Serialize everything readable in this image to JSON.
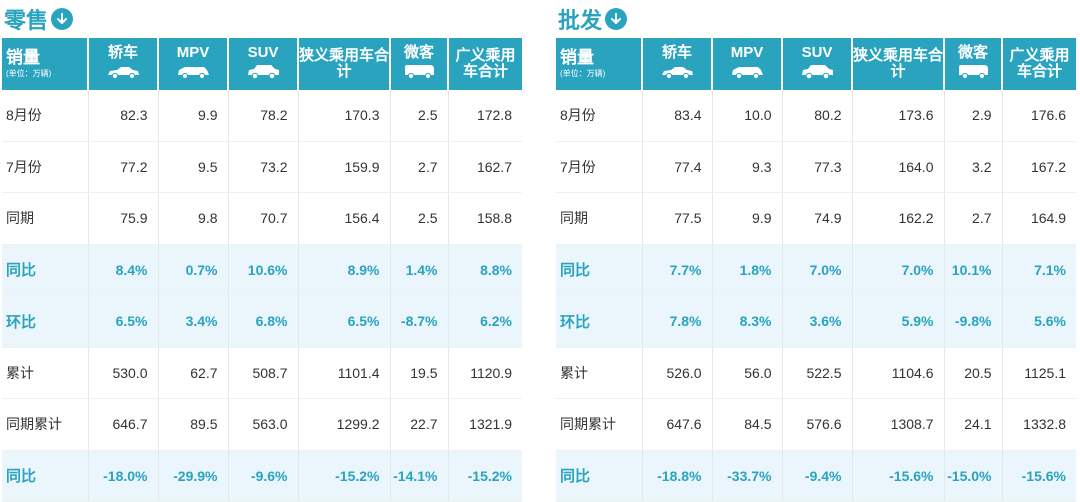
{
  "colors": {
    "accent": "#2aa3bf",
    "highlight_row_bg": "#eaf6fb"
  },
  "header": {
    "corner_main": "销量",
    "corner_sub": "(单位：万辆)",
    "columns": [
      {
        "label": "轿车",
        "icon": "sedan-car-icon"
      },
      {
        "label": "MPV",
        "icon": "mpv-car-icon"
      },
      {
        "label": "SUV",
        "icon": "suv-car-icon"
      },
      {
        "label": "狭义乘用车合计"
      },
      {
        "label": "微客",
        "icon": "minivan-car-icon"
      },
      {
        "label": "广义乘用车合计"
      }
    ]
  },
  "retail": {
    "title": "零售",
    "rows": [
      {
        "label": "8月份",
        "values": [
          "82.3",
          "9.9",
          "78.2",
          "170.3",
          "2.5",
          "172.8"
        ]
      },
      {
        "label": "7月份",
        "values": [
          "77.2",
          "9.5",
          "73.2",
          "159.9",
          "2.7",
          "162.7"
        ]
      },
      {
        "label": "同期",
        "values": [
          "75.9",
          "9.8",
          "70.7",
          "156.4",
          "2.5",
          "158.8"
        ]
      },
      {
        "label": "同比",
        "values": [
          "8.4%",
          "0.7%",
          "10.6%",
          "8.9%",
          "1.4%",
          "8.8%"
        ]
      },
      {
        "label": "环比",
        "values": [
          "6.5%",
          "3.4%",
          "6.8%",
          "6.5%",
          "-8.7%",
          "6.2%"
        ]
      },
      {
        "label": "累计",
        "values": [
          "530.0",
          "62.7",
          "508.7",
          "1101.4",
          "19.5",
          "1120.9"
        ]
      },
      {
        "label": "同期累计",
        "values": [
          "646.7",
          "89.5",
          "563.0",
          "1299.2",
          "22.7",
          "1321.9"
        ]
      },
      {
        "label": "同比",
        "values": [
          "-18.0%",
          "-29.9%",
          "-9.6%",
          "-15.2%",
          "-14.1%",
          "-15.2%"
        ]
      }
    ]
  },
  "wholesale": {
    "title": "批发",
    "rows": [
      {
        "label": "8月份",
        "values": [
          "83.4",
          "10.0",
          "80.2",
          "173.6",
          "2.9",
          "176.6"
        ]
      },
      {
        "label": "7月份",
        "values": [
          "77.4",
          "9.3",
          "77.3",
          "164.0",
          "3.2",
          "167.2"
        ]
      },
      {
        "label": "同期",
        "values": [
          "77.5",
          "9.9",
          "74.9",
          "162.2",
          "2.7",
          "164.9"
        ]
      },
      {
        "label": "同比",
        "values": [
          "7.7%",
          "1.8%",
          "7.0%",
          "7.0%",
          "10.1%",
          "7.1%"
        ]
      },
      {
        "label": "环比",
        "values": [
          "7.8%",
          "8.3%",
          "3.6%",
          "5.9%",
          "-9.8%",
          "5.6%"
        ]
      },
      {
        "label": "累计",
        "values": [
          "526.0",
          "56.0",
          "522.5",
          "1104.6",
          "20.5",
          "1125.1"
        ]
      },
      {
        "label": "同期累计",
        "values": [
          "647.6",
          "84.5",
          "576.6",
          "1308.7",
          "24.1",
          "1332.8"
        ]
      },
      {
        "label": "同比",
        "values": [
          "-18.8%",
          "-33.7%",
          "-9.4%",
          "-15.6%",
          "-15.0%",
          "-15.6%"
        ]
      }
    ]
  }
}
